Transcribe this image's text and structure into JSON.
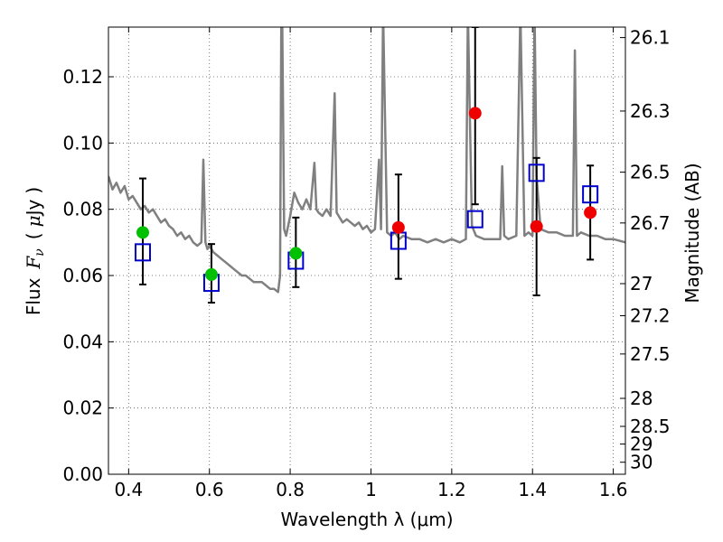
{
  "chart_data": {
    "type": "scatter",
    "xlabel": "Wavelength  λ (μm)",
    "ylabel": "Flux  Fν  ( μJy )",
    "ylabel_parts": {
      "prefix": "Flux",
      "sym": "F",
      "sub": "ν",
      "open": "(",
      "mu": "μ",
      "unit": "Jy",
      "close": ")"
    },
    "y2label": "Magnitude (AB)",
    "xlim": [
      0.35,
      1.63
    ],
    "ylim": [
      0.0,
      0.135
    ],
    "grid": true,
    "xticks": [
      0.4,
      0.6,
      0.8,
      1.0,
      1.2,
      1.4,
      1.6
    ],
    "xtick_labels": [
      "0.4",
      "0.6",
      "0.8",
      "1",
      "1.2",
      "1.4",
      "1.6"
    ],
    "yticks": [
      0.0,
      0.02,
      0.04,
      0.06,
      0.08,
      0.1,
      0.12
    ],
    "ytick_labels": [
      "0.00",
      "0.02",
      "0.04",
      "0.06",
      "0.08",
      "0.10",
      "0.12"
    ],
    "y2ticks": [
      26.1,
      26.3,
      26.5,
      26.7,
      27,
      27.2,
      27.5,
      28,
      28.5,
      29,
      30
    ],
    "y2tick_labels": [
      "26.1",
      "26.3",
      "26.5",
      "26.7",
      "27",
      "27.2",
      "27.5",
      "28",
      "28.5",
      "29",
      "30"
    ],
    "colors": {
      "model": "#808080",
      "observed_detection": "#00c000",
      "observed_upper": "#ee0000",
      "model_photometry": "#0000cc",
      "errorbar": "#000000",
      "grid": "#555555"
    },
    "model_spectrum": {
      "x": [
        0.35,
        0.36,
        0.37,
        0.38,
        0.39,
        0.4,
        0.41,
        0.42,
        0.43,
        0.44,
        0.45,
        0.46,
        0.47,
        0.48,
        0.49,
        0.5,
        0.51,
        0.52,
        0.53,
        0.54,
        0.55,
        0.56,
        0.57,
        0.58,
        0.585,
        0.59,
        0.595,
        0.6,
        0.61,
        0.62,
        0.63,
        0.64,
        0.65,
        0.66,
        0.67,
        0.68,
        0.69,
        0.7,
        0.71,
        0.72,
        0.73,
        0.74,
        0.75,
        0.76,
        0.77,
        0.775,
        0.778,
        0.78,
        0.785,
        0.79,
        0.8,
        0.81,
        0.82,
        0.83,
        0.84,
        0.85,
        0.86,
        0.865,
        0.87,
        0.88,
        0.89,
        0.9,
        0.91,
        0.915,
        0.92,
        0.93,
        0.94,
        0.95,
        0.96,
        0.97,
        0.98,
        0.99,
        1.0,
        1.01,
        1.02,
        1.025,
        1.03,
        1.04,
        1.05,
        1.06,
        1.065,
        1.07,
        1.08,
        1.1,
        1.12,
        1.14,
        1.16,
        1.18,
        1.2,
        1.22,
        1.235,
        1.24,
        1.25,
        1.26,
        1.28,
        1.3,
        1.32,
        1.325,
        1.33,
        1.34,
        1.36,
        1.37,
        1.38,
        1.39,
        1.4,
        1.405,
        1.41,
        1.42,
        1.44,
        1.46,
        1.48,
        1.5,
        1.505,
        1.51,
        1.52,
        1.54,
        1.56,
        1.58,
        1.6,
        1.63
      ],
      "y": [
        0.09,
        0.086,
        0.088,
        0.085,
        0.087,
        0.083,
        0.084,
        0.082,
        0.08,
        0.081,
        0.079,
        0.08,
        0.078,
        0.076,
        0.077,
        0.075,
        0.074,
        0.072,
        0.073,
        0.071,
        0.072,
        0.07,
        0.069,
        0.07,
        0.095,
        0.07,
        0.068,
        0.069,
        0.067,
        0.066,
        0.065,
        0.064,
        0.063,
        0.062,
        0.061,
        0.06,
        0.06,
        0.059,
        0.058,
        0.058,
        0.058,
        0.057,
        0.056,
        0.056,
        0.055,
        0.06,
        0.14,
        0.14,
        0.074,
        0.072,
        0.078,
        0.085,
        0.082,
        0.08,
        0.083,
        0.08,
        0.094,
        0.08,
        0.079,
        0.078,
        0.08,
        0.078,
        0.115,
        0.079,
        0.078,
        0.076,
        0.077,
        0.076,
        0.075,
        0.076,
        0.074,
        0.075,
        0.073,
        0.074,
        0.095,
        0.074,
        0.14,
        0.073,
        0.072,
        0.073,
        0.072,
        0.071,
        0.072,
        0.071,
        0.071,
        0.07,
        0.071,
        0.07,
        0.071,
        0.07,
        0.071,
        0.14,
        0.075,
        0.072,
        0.071,
        0.071,
        0.071,
        0.093,
        0.072,
        0.071,
        0.072,
        0.14,
        0.072,
        0.073,
        0.072,
        0.14,
        0.09,
        0.074,
        0.073,
        0.073,
        0.072,
        0.072,
        0.128,
        0.072,
        0.073,
        0.072,
        0.072,
        0.071,
        0.071,
        0.07
      ]
    },
    "observed_detections": [
      {
        "x": 0.435,
        "y": 0.073
      },
      {
        "x": 0.605,
        "y": 0.0603
      },
      {
        "x": 0.814,
        "y": 0.0667
      }
    ],
    "observed_upper_limits": [
      {
        "x": 1.068,
        "y": 0.0745
      },
      {
        "x": 1.258,
        "y": 0.109
      },
      {
        "x": 1.41,
        "y": 0.0748
      },
      {
        "x": 1.543,
        "y": 0.079
      }
    ],
    "model_photometry": [
      {
        "x": 0.435,
        "y": 0.067
      },
      {
        "x": 0.605,
        "y": 0.0578
      },
      {
        "x": 0.814,
        "y": 0.0645
      },
      {
        "x": 1.068,
        "y": 0.0705
      },
      {
        "x": 1.258,
        "y": 0.077
      },
      {
        "x": 1.41,
        "y": 0.091
      },
      {
        "x": 1.543,
        "y": 0.0845
      }
    ],
    "error_bars": [
      {
        "x": 0.435,
        "low": 0.0573,
        "high": 0.0893
      },
      {
        "x": 0.605,
        "low": 0.0518,
        "high": 0.0695
      },
      {
        "x": 0.814,
        "low": 0.0565,
        "high": 0.0775
      },
      {
        "x": 1.068,
        "low": 0.059,
        "high": 0.0905
      },
      {
        "x": 1.258,
        "low": 0.0815,
        "high": 0.135
      },
      {
        "x": 1.41,
        "low": 0.054,
        "high": 0.0955
      },
      {
        "x": 1.543,
        "low": 0.0648,
        "high": 0.0932
      }
    ]
  }
}
